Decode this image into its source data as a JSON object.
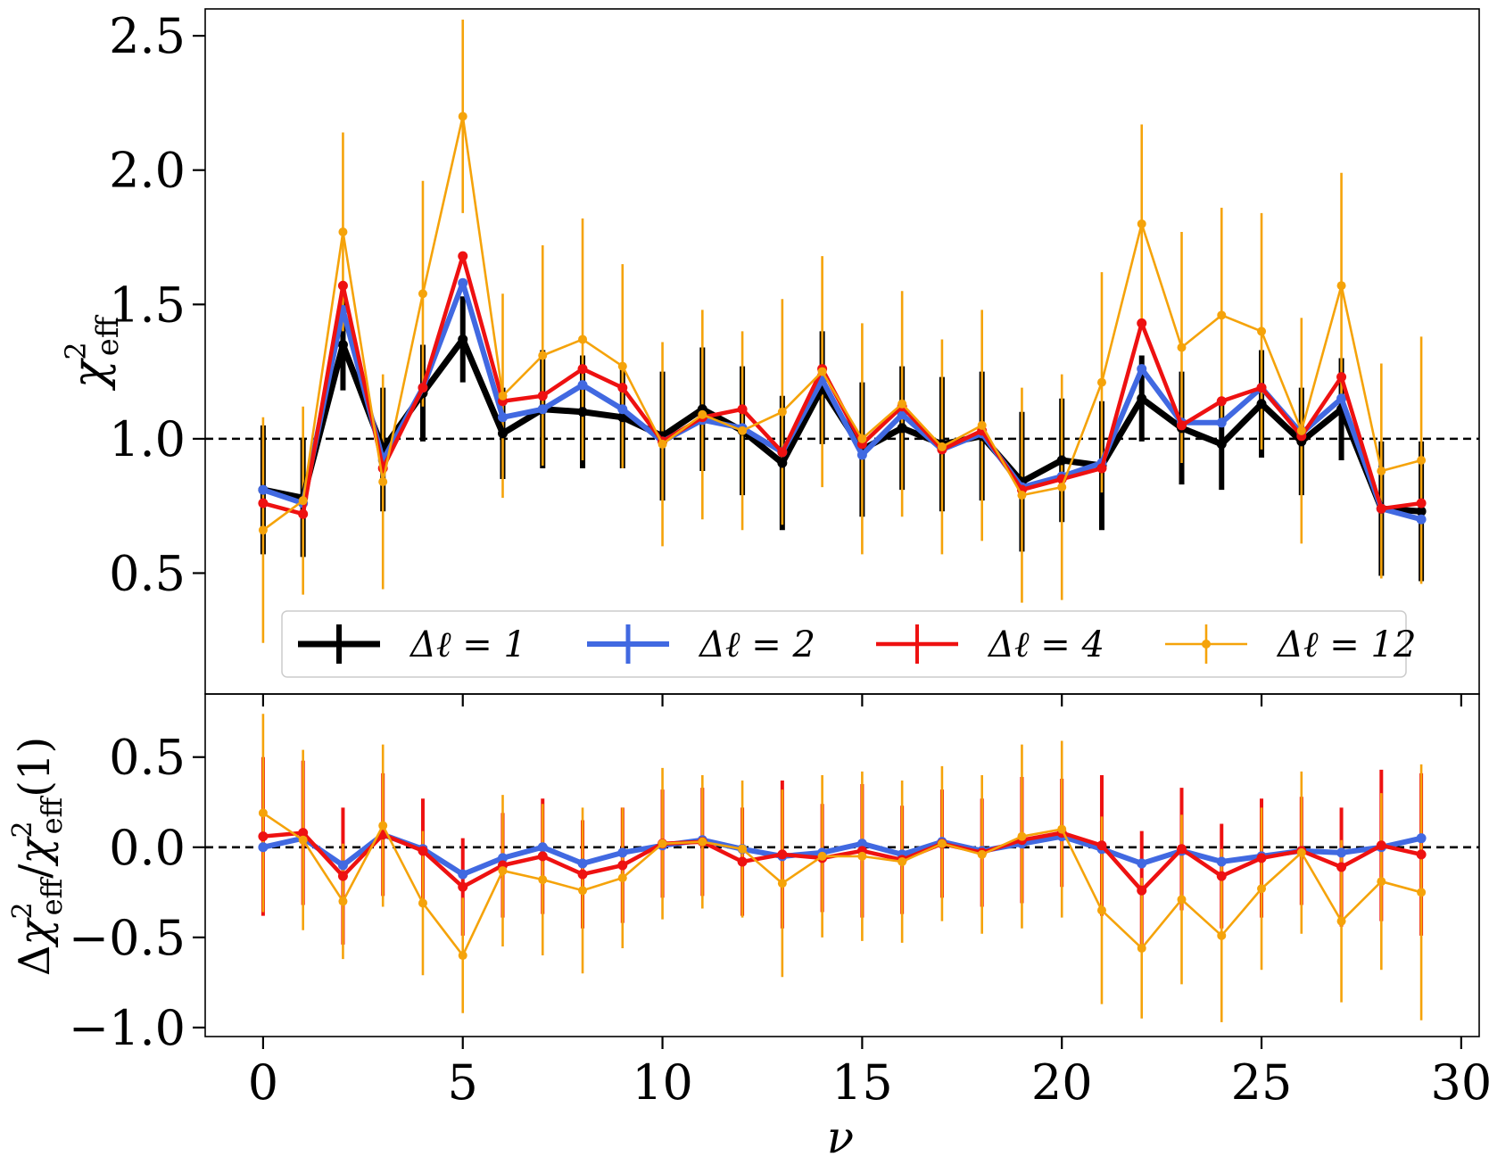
{
  "chart_data": [
    {
      "type": "line",
      "panel": "top",
      "ylabel_main": "χ",
      "ylabel_sup": "2",
      "ylabel_sub": "eff",
      "ylim": [
        0.05,
        2.6
      ],
      "yticks": [
        0.5,
        1.0,
        1.5,
        2.0,
        2.5
      ],
      "ytick_labels": [
        "0.5",
        "1.0",
        "1.5",
        "2.0",
        "2.5"
      ],
      "xlim": [
        -1.45,
        30.45
      ],
      "reference_line": 1.0,
      "legend": {
        "placement": "lower-center",
        "columns": 4
      },
      "series": [
        {
          "name": "Δℓ = 1",
          "color": "#000000",
          "x": [
            0,
            1,
            2,
            3,
            4,
            5,
            6,
            7,
            8,
            9,
            10,
            11,
            12,
            13,
            14,
            15,
            16,
            17,
            18,
            19,
            20,
            21,
            22,
            23,
            24,
            25,
            26,
            27,
            28,
            29
          ],
          "y": [
            0.81,
            0.78,
            1.35,
            0.96,
            1.17,
            1.37,
            1.02,
            1.11,
            1.1,
            1.08,
            1.01,
            1.11,
            1.03,
            0.91,
            1.19,
            0.96,
            1.04,
            0.98,
            1.01,
            0.84,
            0.92,
            0.9,
            1.15,
            1.04,
            0.98,
            1.13,
            0.99,
            1.11,
            0.74,
            0.73
          ],
          "yerr": [
            0.24,
            0.22,
            0.17,
            0.23,
            0.18,
            0.16,
            0.17,
            0.22,
            0.21,
            0.19,
            0.24,
            0.23,
            0.24,
            0.25,
            0.21,
            0.25,
            0.23,
            0.25,
            0.24,
            0.26,
            0.23,
            0.24,
            0.16,
            0.21,
            0.17,
            0.2,
            0.2,
            0.19,
            0.25,
            0.26
          ]
        },
        {
          "name": "Δℓ = 2",
          "color": "#4169e1",
          "x": [
            0,
            1,
            2,
            3,
            4,
            5,
            6,
            7,
            8,
            9,
            10,
            11,
            12,
            13,
            14,
            15,
            16,
            17,
            18,
            19,
            20,
            21,
            22,
            23,
            24,
            25,
            26,
            27,
            28,
            29
          ],
          "y": [
            0.81,
            0.76,
            1.48,
            0.92,
            1.19,
            1.58,
            1.08,
            1.11,
            1.2,
            1.11,
            0.99,
            1.07,
            1.04,
            0.95,
            1.22,
            0.94,
            1.09,
            0.96,
            1.02,
            0.82,
            0.86,
            0.91,
            1.26,
            1.06,
            1.06,
            1.19,
            1.02,
            1.15,
            0.74,
            0.7
          ]
        },
        {
          "name": "Δℓ = 4",
          "color": "#ee1111",
          "x": [
            0,
            1,
            2,
            3,
            4,
            5,
            6,
            7,
            8,
            9,
            10,
            11,
            12,
            13,
            14,
            15,
            16,
            17,
            18,
            19,
            20,
            21,
            22,
            23,
            24,
            25,
            26,
            27,
            28,
            29
          ],
          "y": [
            0.76,
            0.72,
            1.57,
            0.89,
            1.19,
            1.68,
            1.14,
            1.16,
            1.26,
            1.19,
            0.99,
            1.08,
            1.11,
            0.95,
            1.26,
            0.98,
            1.12,
            0.96,
            1.03,
            0.81,
            0.85,
            0.89,
            1.43,
            1.05,
            1.14,
            1.19,
            1.01,
            1.23,
            0.74,
            0.76
          ]
        },
        {
          "name": "Δℓ = 12",
          "color": "#f5a30a",
          "x": [
            0,
            1,
            2,
            3,
            4,
            5,
            6,
            7,
            8,
            9,
            10,
            11,
            12,
            13,
            14,
            15,
            16,
            17,
            18,
            19,
            20,
            21,
            22,
            23,
            24,
            25,
            26,
            27,
            28,
            29
          ],
          "y": [
            0.66,
            0.77,
            1.77,
            0.84,
            1.54,
            2.2,
            1.16,
            1.31,
            1.37,
            1.27,
            0.98,
            1.09,
            1.03,
            1.1,
            1.25,
            1.0,
            1.13,
            0.97,
            1.05,
            0.79,
            0.82,
            1.21,
            1.8,
            1.34,
            1.46,
            1.4,
            1.03,
            1.57,
            0.88,
            0.92
          ],
          "yerr": [
            0.42,
            0.35,
            0.37,
            0.4,
            0.42,
            0.36,
            0.38,
            0.41,
            0.45,
            0.38,
            0.38,
            0.39,
            0.37,
            0.42,
            0.43,
            0.43,
            0.42,
            0.4,
            0.43,
            0.4,
            0.42,
            0.41,
            0.37,
            0.43,
            0.4,
            0.44,
            0.42,
            0.42,
            0.4,
            0.46
          ]
        }
      ]
    },
    {
      "type": "line",
      "panel": "bottom",
      "ylabel": "Δχ²eff/χ²eff(1)",
      "ylabel_parts": {
        "delta": "Δ",
        "chi": "χ",
        "sup": "2",
        "sub": "eff",
        "slash": "/",
        "arg": "(1)"
      },
      "xlabel": "ν",
      "ylim": [
        -1.05,
        0.85
      ],
      "yticks": [
        -1.0,
        -0.5,
        0.0,
        0.5
      ],
      "ytick_labels": [
        "−1.0",
        "−0.5",
        "0.0",
        "0.5"
      ],
      "xlim": [
        -1.45,
        30.45
      ],
      "xticks": [
        0,
        5,
        10,
        15,
        20,
        25,
        30
      ],
      "xtick_labels": [
        "0",
        "5",
        "10",
        "15",
        "20",
        "25",
        "30"
      ],
      "reference_line": 0.0,
      "series": [
        {
          "name": "Δℓ = 2",
          "color": "#4169e1",
          "x": [
            0,
            1,
            2,
            3,
            4,
            5,
            6,
            7,
            8,
            9,
            10,
            11,
            12,
            13,
            14,
            15,
            16,
            17,
            18,
            19,
            20,
            21,
            22,
            23,
            24,
            25,
            26,
            27,
            28,
            29
          ],
          "y": [
            0.0,
            0.05,
            -0.1,
            0.07,
            -0.01,
            -0.15,
            -0.06,
            0.0,
            -0.09,
            -0.03,
            0.01,
            0.04,
            -0.01,
            -0.05,
            -0.03,
            0.02,
            -0.04,
            0.03,
            -0.02,
            0.02,
            0.06,
            -0.01,
            -0.09,
            -0.02,
            -0.08,
            -0.05,
            -0.02,
            -0.03,
            0.0,
            0.05
          ]
        },
        {
          "name": "Δℓ = 4",
          "color": "#ee1111",
          "x": [
            0,
            1,
            2,
            3,
            4,
            5,
            6,
            7,
            8,
            9,
            10,
            11,
            12,
            13,
            14,
            15,
            16,
            17,
            18,
            19,
            20,
            21,
            22,
            23,
            24,
            25,
            26,
            27,
            28,
            29
          ],
          "y": [
            0.06,
            0.08,
            -0.16,
            0.07,
            -0.02,
            -0.22,
            -0.1,
            -0.05,
            -0.15,
            -0.1,
            0.02,
            0.03,
            -0.08,
            -0.04,
            -0.06,
            -0.02,
            -0.07,
            0.02,
            -0.03,
            0.04,
            0.08,
            0.01,
            -0.24,
            -0.01,
            -0.16,
            -0.06,
            -0.02,
            -0.11,
            0.01,
            -0.04
          ],
          "yerr": [
            0.44,
            0.4,
            0.38,
            0.34,
            0.29,
            0.27,
            0.29,
            0.32,
            0.3,
            0.32,
            0.3,
            0.3,
            0.3,
            0.41,
            0.3,
            0.37,
            0.3,
            0.3,
            0.3,
            0.35,
            0.3,
            0.39,
            0.33,
            0.34,
            0.29,
            0.33,
            0.3,
            0.33,
            0.42,
            0.45
          ]
        },
        {
          "name": "Δℓ = 12",
          "color": "#f5a30a",
          "x": [
            0,
            1,
            2,
            3,
            4,
            5,
            6,
            7,
            8,
            9,
            10,
            11,
            12,
            13,
            14,
            15,
            16,
            17,
            18,
            19,
            20,
            21,
            22,
            23,
            24,
            25,
            26,
            27,
            28,
            29
          ],
          "y": [
            0.19,
            0.04,
            -0.3,
            0.12,
            -0.31,
            -0.6,
            -0.13,
            -0.18,
            -0.24,
            -0.17,
            0.02,
            0.03,
            -0.01,
            -0.2,
            -0.05,
            -0.05,
            -0.08,
            0.02,
            -0.04,
            0.06,
            0.1,
            -0.35,
            -0.56,
            -0.29,
            -0.49,
            -0.23,
            -0.03,
            -0.41,
            -0.19,
            -0.25
          ],
          "yerr": [
            0.55,
            0.5,
            0.32,
            0.45,
            0.4,
            0.32,
            0.42,
            0.42,
            0.46,
            0.39,
            0.42,
            0.37,
            0.38,
            0.52,
            0.45,
            0.47,
            0.45,
            0.43,
            0.44,
            0.51,
            0.49,
            0.52,
            0.39,
            0.47,
            0.48,
            0.45,
            0.45,
            0.45,
            0.49,
            0.71
          ]
        }
      ]
    }
  ]
}
